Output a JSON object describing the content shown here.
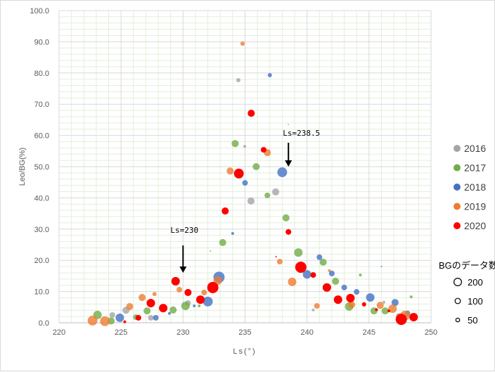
{
  "chart_data": {
    "type": "scatter",
    "subtype": "bubble",
    "xlabel": "Ls(°)",
    "ylabel": "Leo/BG(%)",
    "xlim": [
      220,
      250
    ],
    "ylim": [
      0,
      100
    ],
    "xticks": [
      "220",
      "225",
      "230",
      "235",
      "240",
      "245",
      "250"
    ],
    "yticks": [
      "0.0",
      "10.0",
      "20.0",
      "30.0",
      "40.0",
      "50.0",
      "60.0",
      "70.0",
      "80.0",
      "90.0",
      "100.0"
    ],
    "grid": true,
    "legend_placement": "right",
    "size_legend": {
      "title": "BGのデータ数",
      "entries": [
        {
          "label": "200",
          "n": 200
        },
        {
          "label": "100",
          "n": 100
        },
        {
          "label": "50",
          "n": 50
        }
      ]
    },
    "annotations": [
      {
        "text": "Ls=230",
        "x": 230,
        "arrow_to_y": 16
      },
      {
        "text": "Ls=238.5",
        "x": 238.5,
        "arrow_to_y": 50
      }
    ],
    "series": [
      {
        "name": "2016",
        "color": "#A5A5A5",
        "points": [
          [
            224.3,
            2.5,
            80
          ],
          [
            225.4,
            4.0,
            125
          ],
          [
            227.4,
            1.6,
            80
          ],
          [
            230.4,
            6.3,
            80
          ],
          [
            234.46,
            77.7,
            45
          ],
          [
            234.97,
            56.5,
            20
          ],
          [
            235.48,
            39.0,
            125
          ],
          [
            237.47,
            41.9,
            125
          ],
          [
            238.49,
            63.5,
            5
          ],
          [
            240.5,
            4.1,
            20
          ],
          [
            246.2,
            6.6,
            20
          ],
          [
            247.4,
            2.2,
            80
          ]
        ]
      },
      {
        "name": "2017",
        "color": "#70AD47",
        "points": [
          [
            223.1,
            2.5,
            180
          ],
          [
            224.2,
            0.6,
            125
          ],
          [
            226.2,
            1.8,
            80
          ],
          [
            227.1,
            3.8,
            125
          ],
          [
            229.2,
            4.1,
            125
          ],
          [
            230.2,
            5.4,
            180
          ],
          [
            231.3,
            5.4,
            20
          ],
          [
            232.2,
            23.0,
            5
          ],
          [
            233.2,
            25.7,
            125
          ],
          [
            234.2,
            57.4,
            125
          ],
          [
            235.9,
            50.0,
            125
          ],
          [
            236.8,
            40.8,
            80
          ],
          [
            238.3,
            33.6,
            125
          ],
          [
            239.3,
            22.5,
            180
          ],
          [
            241.3,
            19.4,
            125
          ],
          [
            242.3,
            13.3,
            125
          ],
          [
            243.4,
            5.2,
            180
          ],
          [
            244.3,
            15.3,
            20
          ],
          [
            245.4,
            3.8,
            125
          ],
          [
            246.3,
            3.8,
            125
          ],
          [
            248.4,
            8.3,
            20
          ]
        ]
      },
      {
        "name": "2018",
        "color": "#4472C4",
        "points": [
          [
            224.9,
            1.6,
            180
          ],
          [
            227.8,
            1.6,
            80
          ],
          [
            228.9,
            3.0,
            20
          ],
          [
            230.9,
            5.4,
            20
          ],
          [
            232.0,
            6.8,
            240
          ],
          [
            232.9,
            14.6,
            315
          ],
          [
            234.0,
            28.6,
            20
          ],
          [
            235.0,
            44.8,
            80
          ],
          [
            237.0,
            79.3,
            45
          ],
          [
            238.0,
            48.2,
            240
          ],
          [
            240.0,
            15.5,
            180
          ],
          [
            241.0,
            21.0,
            80
          ],
          [
            242.0,
            15.8,
            80
          ],
          [
            243.0,
            11.3,
            80
          ],
          [
            244.0,
            9.9,
            80
          ],
          [
            245.1,
            8.1,
            180
          ],
          [
            246.0,
            18.0,
            5
          ],
          [
            247.1,
            6.5,
            125
          ],
          [
            248.1,
            3.0,
            80
          ]
        ]
      },
      {
        "name": "2019",
        "color": "#ED7D31",
        "points": [
          [
            222.7,
            0.7,
            240
          ],
          [
            223.7,
            0.5,
            240
          ],
          [
            225.7,
            5.2,
            125
          ],
          [
            226.7,
            8.1,
            125
          ],
          [
            227.7,
            9.2,
            45
          ],
          [
            229.7,
            10.6,
            80
          ],
          [
            231.7,
            9.7,
            80
          ],
          [
            232.8,
            13.5,
            180
          ],
          [
            233.8,
            48.6,
            125
          ],
          [
            234.8,
            89.4,
            45
          ],
          [
            236.8,
            54.5,
            125
          ],
          [
            237.8,
            19.6,
            80
          ],
          [
            238.8,
            13.1,
            180
          ],
          [
            240.8,
            5.4,
            80
          ],
          [
            241.8,
            16.7,
            20
          ],
          [
            243.6,
            5.8,
            125
          ],
          [
            245.9,
            5.6,
            125
          ],
          [
            246.9,
            4.5,
            180
          ],
          [
            247.9,
            2.3,
            240
          ]
        ]
      },
      {
        "name": "2020",
        "color": "#FF0000",
        "points": [
          [
            225.3,
            0.3,
            20
          ],
          [
            226.4,
            1.6,
            80
          ],
          [
            227.4,
            6.3,
            180
          ],
          [
            228.4,
            4.7,
            180
          ],
          [
            229.4,
            13.3,
            180
          ],
          [
            230.4,
            9.7,
            125
          ],
          [
            231.4,
            7.4,
            180
          ],
          [
            232.4,
            11.3,
            315
          ],
          [
            233.4,
            35.8,
            125
          ],
          [
            234.5,
            47.8,
            240
          ],
          [
            235.5,
            67.1,
            125
          ],
          [
            236.5,
            55.4,
            80
          ],
          [
            237.5,
            21.2,
            5
          ],
          [
            238.5,
            29.1,
            80
          ],
          [
            239.5,
            17.8,
            315
          ],
          [
            240.5,
            15.3,
            80
          ],
          [
            241.6,
            11.3,
            180
          ],
          [
            242.5,
            7.4,
            180
          ],
          [
            243.5,
            7.9,
            180
          ],
          [
            244.6,
            5.9,
            45
          ],
          [
            245.6,
            4.2,
            20
          ],
          [
            246.6,
            3.8,
            20
          ],
          [
            247.6,
            1.1,
            315
          ],
          [
            248.6,
            1.8,
            180
          ]
        ]
      }
    ]
  }
}
